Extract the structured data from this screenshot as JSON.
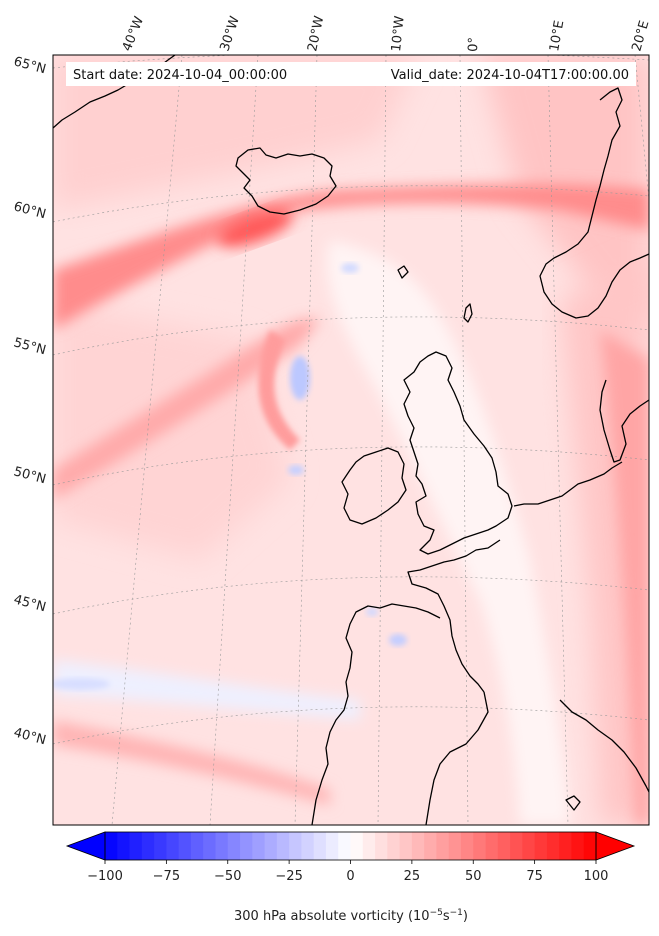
{
  "map": {
    "header": {
      "start_date": "Start date: 2024-10-04_00:00:00",
      "valid_date": "Valid_date: 2024-10-04T17:00:00.00"
    },
    "longitude_labels": [
      "40°W",
      "30°W",
      "20°W",
      "10°W",
      "0°",
      "10°E",
      "20°E"
    ],
    "latitude_labels": [
      "65°N",
      "60°N",
      "55°N",
      "50°N",
      "45°N",
      "40°N"
    ],
    "field": "300 hPa absolute vorticity",
    "colormap": "bwr",
    "colors": {
      "min": "#0000ff",
      "mid": "#ffffff",
      "max": "#ff0000",
      "coastline": "#000000",
      "gridline": "#999999"
    }
  },
  "colorbar": {
    "min": -100,
    "max": 100,
    "step": 5,
    "extend": "both",
    "ticks": [
      {
        "value": -100,
        "label": "−100"
      },
      {
        "value": -75,
        "label": "−75"
      },
      {
        "value": -50,
        "label": "−50"
      },
      {
        "value": -25,
        "label": "−25"
      },
      {
        "value": 0,
        "label": "0"
      },
      {
        "value": 25,
        "label": "25"
      },
      {
        "value": 50,
        "label": "50"
      },
      {
        "value": 75,
        "label": "75"
      },
      {
        "value": 100,
        "label": "100"
      }
    ],
    "label_main": "300 hPa absolute vorticity (10",
    "label_exp1": "−5",
    "label_mid": "s",
    "label_exp2": "−1",
    "label_close": ")"
  }
}
